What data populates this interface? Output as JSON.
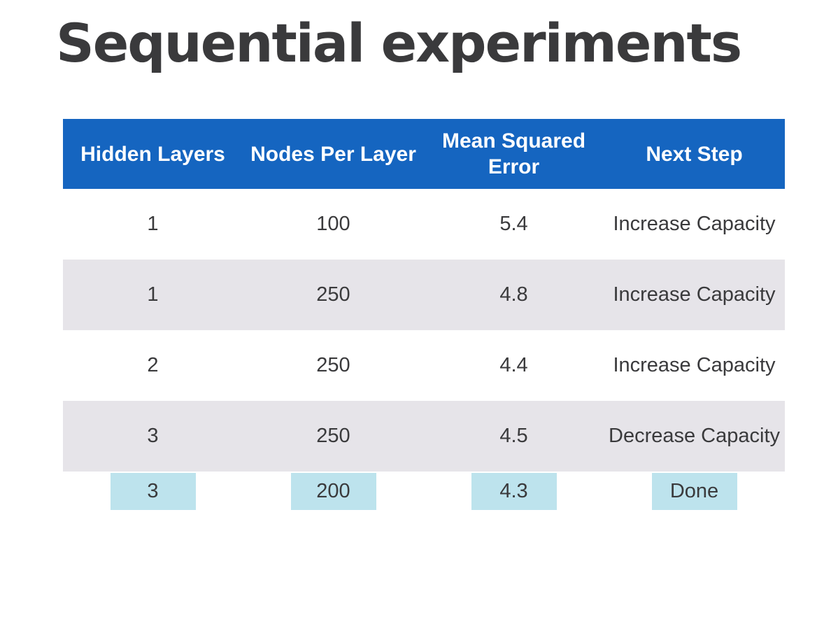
{
  "title": "Sequential experiments",
  "table": {
    "headers": [
      "Hidden Layers",
      "Nodes Per Layer",
      "Mean Squared Error",
      "Next Step"
    ],
    "rows": [
      [
        "1",
        "100",
        "5.4",
        "Increase Capacity"
      ],
      [
        "1",
        "250",
        "4.8",
        "Increase Capacity"
      ],
      [
        "2",
        "250",
        "4.4",
        "Increase Capacity"
      ],
      [
        "3",
        "250",
        "4.5",
        "Decrease Capacity"
      ]
    ],
    "final_row": [
      "3",
      "200",
      "4.3",
      "Done"
    ]
  },
  "colors": {
    "header_background": "#1565c0",
    "header_text": "#ffffff",
    "striped_row_background": "#e6e4e9",
    "final_row_highlight": "#bde3ed",
    "body_text": "#3a3a3c"
  }
}
